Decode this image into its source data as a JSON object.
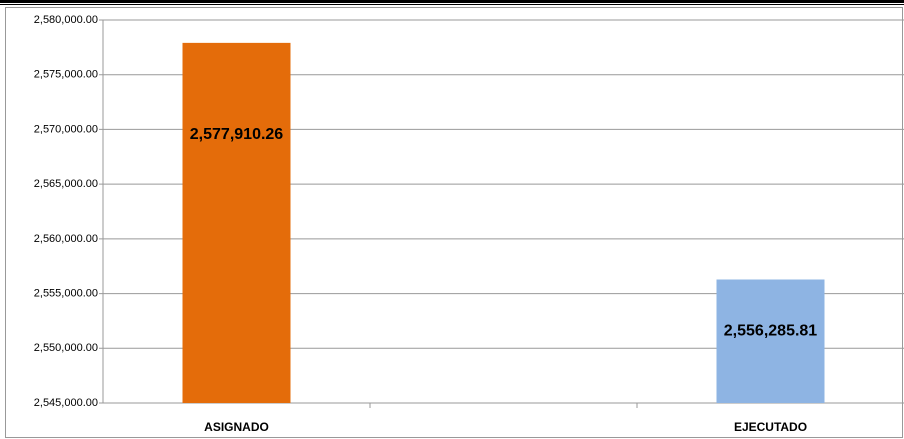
{
  "chart_data": {
    "type": "bar",
    "categories": [
      "ASIGNADO",
      null,
      "EJECUTADO"
    ],
    "values": [
      2577910.26,
      null,
      2556285.81
    ],
    "value_labels": [
      "2,577,910.26",
      null,
      "2,556,285.81"
    ],
    "colors": [
      "#e46c0a",
      null,
      "#8eb4e3"
    ],
    "ylim": [
      2545000,
      2580000
    ],
    "yticks": [
      {
        "value": 2545000,
        "label": "2,545,000.00"
      },
      {
        "value": 2550000,
        "label": "2,550,000.00"
      },
      {
        "value": 2555000,
        "label": "2,555,000.00"
      },
      {
        "value": 2560000,
        "label": "2,560,000.00"
      },
      {
        "value": 2565000,
        "label": "2,565,000.00"
      },
      {
        "value": 2570000,
        "label": "2,570,000.00"
      },
      {
        "value": 2575000,
        "label": "2,575,000.00"
      },
      {
        "value": 2580000,
        "label": "2,580,000.00"
      }
    ],
    "grid": true
  }
}
